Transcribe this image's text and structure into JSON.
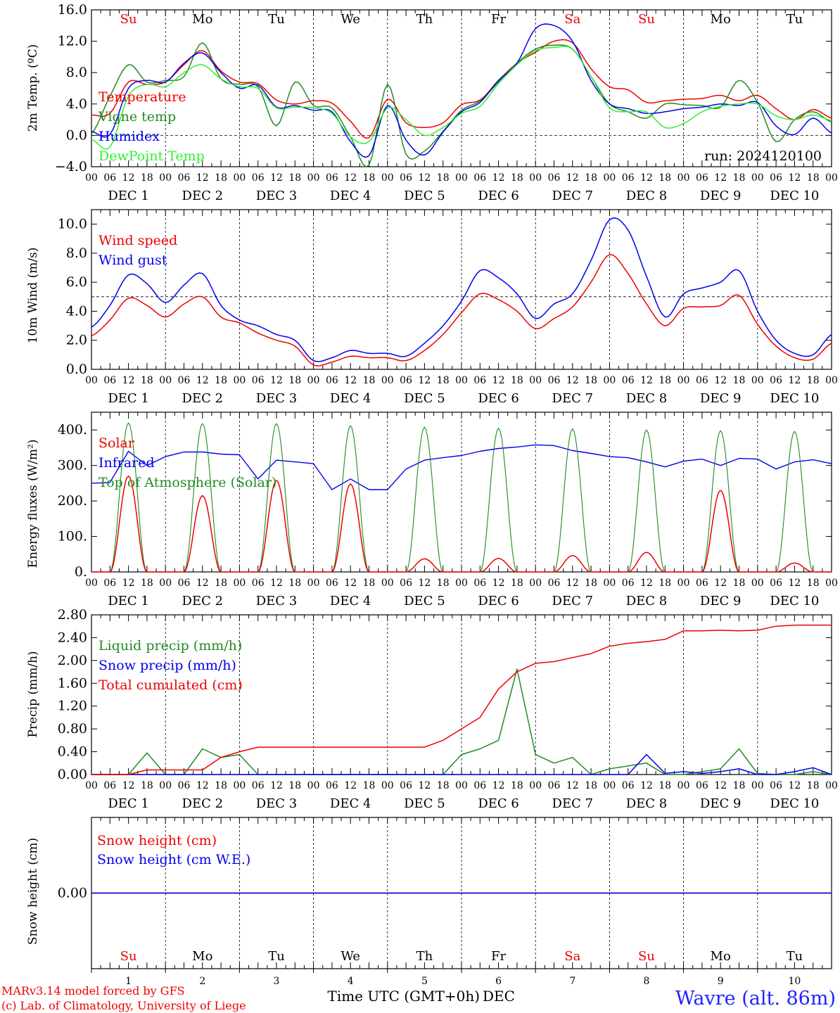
{
  "colors": {
    "red": "#ee0000",
    "blue": "#0000ee",
    "green": "#228b22",
    "lime": "#33ee33",
    "black": "#000000",
    "title_blue": "#2222ff"
  },
  "footer": {
    "credit_1": "MARv3.14 model forced by GFS",
    "credit_2": "(c) Lab. of Climatology, University of Liege",
    "time_axis_label": "Time UTC (GMT+0h)",
    "month": "DEC",
    "station": "Wavre (alt. 86m)"
  },
  "x_axis": {
    "hour_ticks": [
      "00",
      "06",
      "12",
      "18"
    ],
    "final_tick": "00",
    "dates": [
      "DEC  1",
      "DEC  2",
      "DEC  3",
      "DEC  4",
      "DEC  5",
      "DEC  6",
      "DEC  7",
      "DEC  8",
      "DEC  9",
      "DEC 10"
    ],
    "bottom_day_numbers": [
      "1",
      "2",
      "3",
      "4",
      "5",
      "6",
      "7",
      "8",
      "9",
      "10"
    ],
    "weekdays": [
      "Su",
      "Mo",
      "Tu",
      "We",
      "Th",
      "Fr",
      "Sa",
      "Su",
      "Mo",
      "Tu"
    ],
    "weekend_days": [
      0,
      6,
      7
    ]
  },
  "chart_data": [
    {
      "type": "line",
      "ylabel": "2m Temp. (ºC)",
      "ylim": [
        -4,
        16
      ],
      "yticks": [
        "−4.0",
        "0.0",
        "4.0",
        "8.0",
        "12.0",
        "16.0"
      ],
      "ytick_values": [
        -4,
        0,
        4,
        8,
        12,
        16
      ],
      "dashed_reference": 0,
      "annotation": "run: 2024120100",
      "x_hours": [
        0,
        6,
        12,
        18,
        24,
        30,
        36,
        42,
        48,
        54,
        60,
        66,
        72,
        78,
        84,
        90,
        96,
        102,
        108,
        114,
        120,
        126,
        132,
        138,
        144,
        150,
        156,
        162,
        168,
        174,
        180,
        186,
        192,
        198,
        204,
        210,
        216,
        222,
        228,
        234,
        240
      ],
      "series": [
        {
          "name": "Temperature",
          "color": "red",
          "values": [
            2.6,
            2.8,
            6.8,
            6.5,
            6.8,
            9.0,
            10.8,
            8.2,
            6.8,
            6.6,
            4.5,
            4.0,
            4.4,
            4.1,
            1.8,
            -0.3,
            4.6,
            1.6,
            1.0,
            1.6,
            3.9,
            4.5,
            7.0,
            9.2,
            10.6,
            12.0,
            11.8,
            8.5,
            6.2,
            5.8,
            4.2,
            4.4,
            4.6,
            4.7,
            5.1,
            4.4,
            5.1,
            3.4,
            2.0,
            3.3,
            2.2
          ]
        },
        {
          "name": "Vigne temp",
          "color": "green",
          "values": [
            0.2,
            5.0,
            9.0,
            6.8,
            7.0,
            7.5,
            11.8,
            7.2,
            6.5,
            6.2,
            1.2,
            6.8,
            3.8,
            3.5,
            -0.2,
            -3.8,
            6.5,
            -2.4,
            -2.0,
            0.5,
            3.2,
            4.4,
            6.8,
            9.2,
            11.0,
            11.5,
            11.0,
            7.5,
            4.0,
            3.0,
            2.2,
            4.0,
            3.9,
            3.8,
            3.6,
            7.0,
            4.2,
            -0.8,
            2.0,
            3.0,
            1.7
          ]
        },
        {
          "name": "Humidex",
          "color": "blue",
          "values": [
            0.5,
            0.1,
            6.0,
            7.0,
            6.8,
            9.2,
            10.5,
            8.0,
            6.0,
            6.4,
            3.6,
            3.8,
            3.2,
            3.0,
            -0.8,
            -2.6,
            3.8,
            -0.6,
            -2.5,
            0.4,
            3.0,
            4.2,
            7.0,
            9.2,
            13.6,
            14.0,
            12.0,
            7.0,
            4.0,
            3.4,
            2.8,
            3.0,
            3.4,
            3.6,
            4.0,
            3.8,
            4.2,
            1.2,
            0.1,
            2.2,
            0.3
          ]
        },
        {
          "name": "DewPoint Temp",
          "color": "lime",
          "values": [
            -0.5,
            -1.5,
            5.0,
            6.5,
            6.2,
            8.0,
            9.0,
            7.2,
            6.2,
            6.0,
            3.5,
            3.6,
            3.5,
            2.8,
            -0.2,
            -0.8,
            3.5,
            2.0,
            0.0,
            1.0,
            2.8,
            3.7,
            6.6,
            9.0,
            10.8,
            11.2,
            11.0,
            7.5,
            3.5,
            3.0,
            3.0,
            1.0,
            1.5,
            3.0,
            3.7,
            4.0,
            4.0,
            2.5,
            2.0,
            2.6,
            1.9
          ]
        }
      ]
    },
    {
      "type": "line",
      "ylabel": "10m Wind (m/s)",
      "ylim": [
        0,
        11
      ],
      "yticks": [
        "0.0",
        "2.0",
        "4.0",
        "6.0",
        "8.0",
        "10.0"
      ],
      "ytick_values": [
        0,
        2,
        4,
        6,
        8,
        10
      ],
      "dashed_reference": 5,
      "x_hours": [
        0,
        6,
        12,
        18,
        24,
        30,
        36,
        42,
        48,
        54,
        60,
        66,
        72,
        78,
        84,
        90,
        96,
        102,
        108,
        114,
        120,
        126,
        132,
        138,
        144,
        150,
        156,
        162,
        168,
        174,
        180,
        186,
        192,
        198,
        204,
        210,
        216,
        222,
        228,
        234,
        240
      ],
      "series": [
        {
          "name": "Wind speed",
          "color": "red",
          "values": [
            2.3,
            3.4,
            4.9,
            4.4,
            3.6,
            4.5,
            5.0,
            3.6,
            3.2,
            2.5,
            2.0,
            1.6,
            0.3,
            0.5,
            0.9,
            0.8,
            0.8,
            0.6,
            1.3,
            2.4,
            3.9,
            5.2,
            4.8,
            4.0,
            2.8,
            3.5,
            4.3,
            6.0,
            7.9,
            6.6,
            4.5,
            3.0,
            4.2,
            4.3,
            4.4,
            5.1,
            3.1,
            1.6,
            0.8,
            0.7,
            1.8
          ]
        },
        {
          "name": "Wind gust",
          "color": "blue",
          "values": [
            2.9,
            4.4,
            6.5,
            5.9,
            4.6,
            5.8,
            6.6,
            4.4,
            3.4,
            3.0,
            2.4,
            2.0,
            0.6,
            0.8,
            1.3,
            1.1,
            1.1,
            0.9,
            1.8,
            3.0,
            4.7,
            6.8,
            6.3,
            5.2,
            3.5,
            4.5,
            5.2,
            7.5,
            10.3,
            9.6,
            6.4,
            3.6,
            5.2,
            5.6,
            6.0,
            6.8,
            4.0,
            2.0,
            1.1,
            1.0,
            2.4
          ]
        }
      ]
    },
    {
      "type": "line",
      "ylabel": "Energy fluxes (W/m²)",
      "ylim": [
        0,
        450
      ],
      "yticks": [
        "0.",
        "100.",
        "200.",
        "300.",
        "400."
      ],
      "ytick_values": [
        0,
        100,
        200,
        300,
        400
      ],
      "series": [
        {
          "name": "Solar",
          "color": "red",
          "peak_hours": [
            12,
            36,
            60,
            84,
            108,
            132,
            156,
            180,
            204,
            228
          ],
          "values": [
            270,
            215,
            258,
            248,
            37,
            38,
            46,
            55,
            230,
            25
          ]
        },
        {
          "name": "Infrared",
          "color": "blue",
          "x_hours": [
            0,
            6,
            12,
            18,
            24,
            30,
            36,
            42,
            48,
            54,
            60,
            66,
            72,
            78,
            84,
            90,
            96,
            102,
            108,
            114,
            120,
            126,
            132,
            138,
            144,
            150,
            156,
            162,
            168,
            174,
            180,
            186,
            192,
            198,
            204,
            210,
            216,
            222,
            228,
            234,
            240
          ],
          "values": [
            250,
            252,
            340,
            300,
            325,
            338,
            338,
            332,
            330,
            262,
            315,
            310,
            305,
            232,
            262,
            232,
            232,
            290,
            315,
            322,
            328,
            340,
            348,
            352,
            358,
            356,
            342,
            334,
            325,
            322,
            310,
            296,
            312,
            318,
            300,
            320,
            318,
            290,
            310,
            316,
            305
          ]
        },
        {
          "name": "Top of Atmosphere (Solar)",
          "color": "green",
          "peak_hours": [
            12,
            36,
            60,
            84,
            108,
            132,
            156,
            180,
            204,
            228
          ],
          "values": [
            420,
            418,
            418,
            412,
            408,
            405,
            403,
            400,
            398,
            396
          ]
        }
      ]
    },
    {
      "type": "line",
      "ylabel": "Precip (mm/h)",
      "ylim": [
        0,
        2.8
      ],
      "yticks": [
        "0.00",
        "0.40",
        "0.80",
        "1.20",
        "1.60",
        "2.00",
        "2.40",
        "2.80"
      ],
      "ytick_values": [
        0,
        0.4,
        0.8,
        1.2,
        1.6,
        2.0,
        2.4,
        2.8
      ],
      "x_hours": [
        0,
        6,
        12,
        18,
        24,
        30,
        36,
        42,
        48,
        54,
        60,
        66,
        72,
        78,
        84,
        90,
        96,
        102,
        108,
        114,
        120,
        126,
        132,
        138,
        144,
        150,
        156,
        162,
        168,
        174,
        180,
        186,
        192,
        198,
        204,
        210,
        216,
        222,
        228,
        234,
        240
      ],
      "series": [
        {
          "name": "Liquid precip (mm/h)",
          "color": "green",
          "values": [
            0,
            0,
            0,
            0.38,
            0,
            0,
            0.45,
            0.3,
            0.35,
            0,
            0,
            0,
            0,
            0,
            0,
            0,
            0,
            0,
            0,
            0,
            0.35,
            0.45,
            0.6,
            1.85,
            0.35,
            0.2,
            0.3,
            0,
            0.1,
            0.15,
            0.2,
            0,
            0,
            0.05,
            0.1,
            0.45,
            0.02,
            0,
            0,
            0.05,
            0
          ]
        },
        {
          "name": "Snow precip (mm/h)",
          "color": "blue",
          "values": [
            0,
            0,
            0,
            0,
            0,
            0,
            0,
            0,
            0,
            0,
            0,
            0,
            0,
            0,
            0,
            0,
            0,
            0,
            0,
            0,
            0,
            0,
            0,
            0,
            0,
            0,
            0,
            0,
            0,
            0,
            0.35,
            0.02,
            0.05,
            0.02,
            0.05,
            0.1,
            0,
            0,
            0.05,
            0.12,
            0
          ]
        },
        {
          "name": "Total cumulated (cm)",
          "color": "red",
          "values": [
            0,
            0,
            0,
            0.08,
            0.08,
            0.08,
            0.08,
            0.3,
            0.4,
            0.48,
            0.48,
            0.48,
            0.48,
            0.48,
            0.48,
            0.48,
            0.48,
            0.48,
            0.48,
            0.6,
            0.8,
            1.0,
            1.5,
            1.8,
            1.95,
            1.98,
            2.05,
            2.12,
            2.25,
            2.3,
            2.33,
            2.37,
            2.52,
            2.52,
            2.53,
            2.52,
            2.53,
            2.6,
            2.62,
            2.62,
            2.62
          ]
        }
      ]
    },
    {
      "type": "line",
      "ylabel": "Snow height (cm)",
      "ylim": [
        -1,
        1
      ],
      "yticks": [
        "0.00"
      ],
      "ytick_values": [
        0
      ],
      "x_hours": [
        0,
        240
      ],
      "series": [
        {
          "name": "Snow height (cm)",
          "color": "red",
          "values": [
            0,
            0
          ]
        },
        {
          "name": "Snow height (cm W.E.)",
          "color": "blue",
          "values": [
            0,
            0
          ]
        }
      ]
    }
  ]
}
